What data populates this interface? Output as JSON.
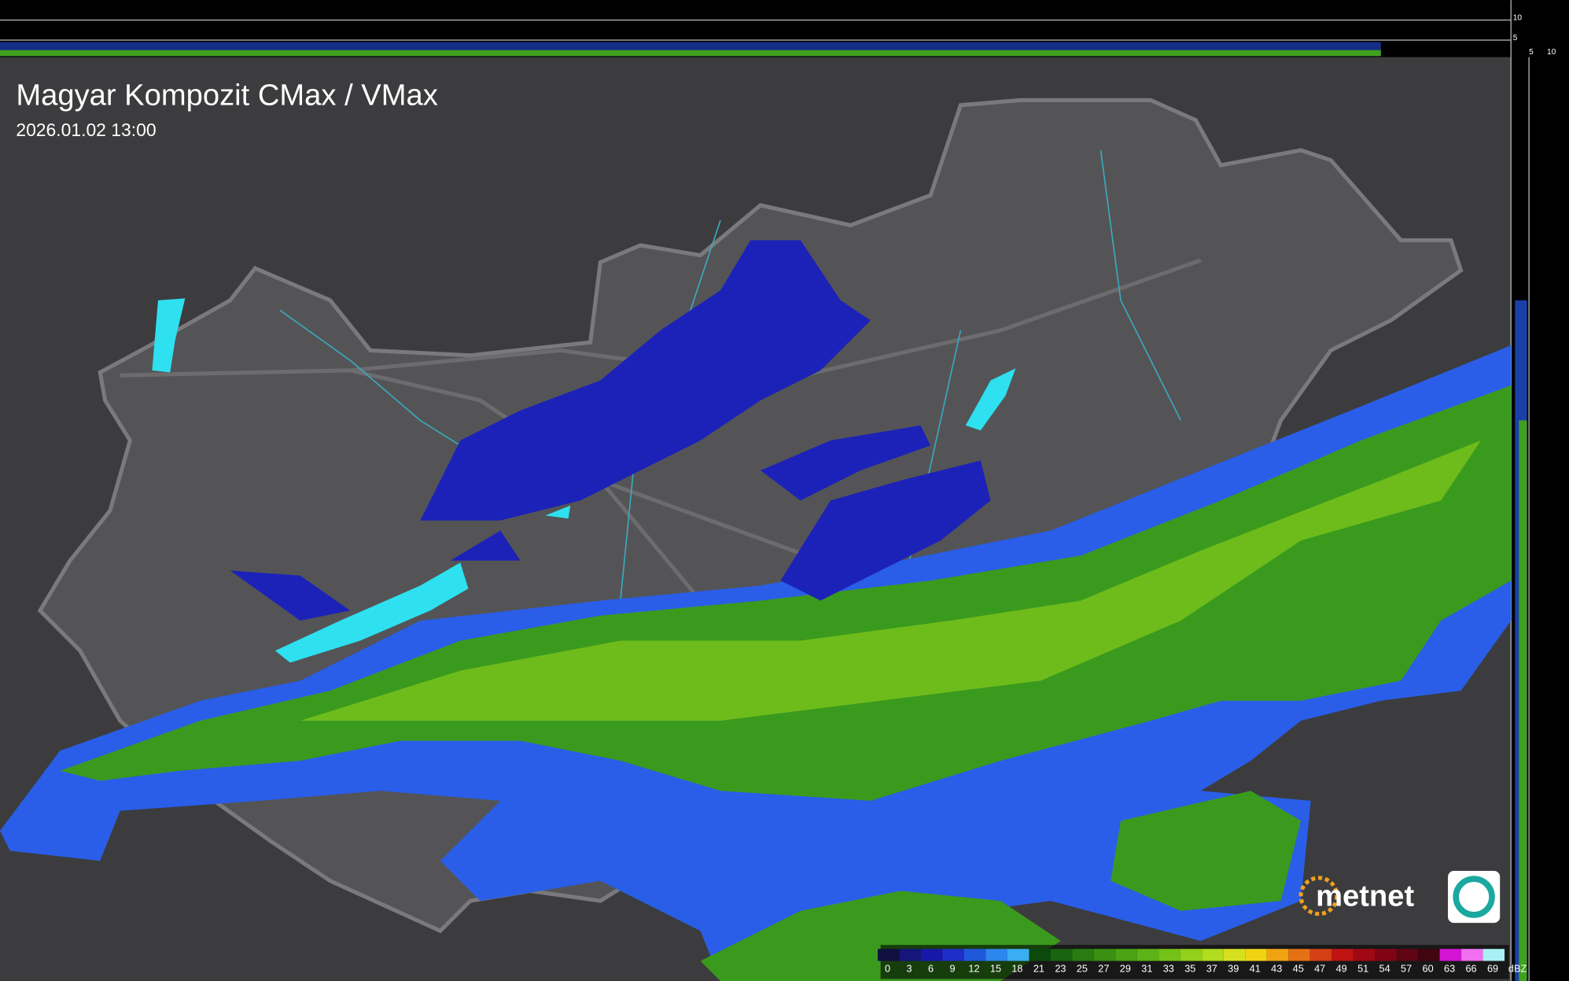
{
  "header": {
    "title": "Magyar Kompozit CMax / VMax",
    "timestamp": "2026.01.02 13:00"
  },
  "side_axis": {
    "top_labels": [
      "10",
      "5"
    ],
    "bottom_labels": [
      "5",
      "10"
    ]
  },
  "logo": {
    "text": "metnet"
  },
  "legend": {
    "labels": [
      "0",
      "3",
      "6",
      "9",
      "12",
      "15",
      "18",
      "21",
      "23",
      "25",
      "27",
      "29",
      "31",
      "33",
      "35",
      "37",
      "39",
      "41",
      "43",
      "45",
      "47",
      "49",
      "51",
      "54",
      "57",
      "60",
      "63",
      "66",
      "69"
    ],
    "colors": [
      "#101040",
      "#15157a",
      "#1818a8",
      "#1e2ec8",
      "#2058dc",
      "#2c86ec",
      "#3aaef2",
      "#0c4a0c",
      "#1a6410",
      "#2a7c12",
      "#3a9012",
      "#4aa214",
      "#5cb216",
      "#74c218",
      "#92d01c",
      "#b2dc20",
      "#d6e020",
      "#f0d414",
      "#f0a414",
      "#e47214",
      "#d44014",
      "#c01414",
      "#a00814",
      "#800414",
      "#600414",
      "#420410",
      "#d414d4",
      "#f070f0",
      "#a8f0f4"
    ],
    "unit": "dBZ"
  }
}
